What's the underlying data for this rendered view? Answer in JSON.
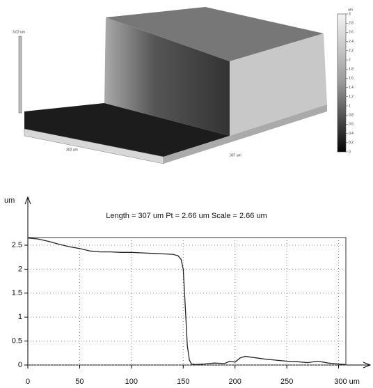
{
  "chart_data": [
    {
      "type": "surface",
      "axis_labels": [
        "3.02 um",
        "302 um",
        "307 um"
      ],
      "colorbar_label": "um",
      "colorbar_lim": [
        0,
        3
      ],
      "colorbar_ticks": [
        3,
        2.8,
        2.6,
        2.4,
        2.2,
        2,
        1.8,
        1.6,
        1.4,
        1.2,
        1,
        0.8,
        0.6,
        0.4,
        0.2,
        0
      ]
    },
    {
      "type": "line",
      "title": "Length = 307 um  Pt = 2.66 um  Scale = 2.66 um",
      "y_label": "um",
      "x": [
        0,
        10,
        20,
        30,
        40,
        50,
        60,
        70,
        80,
        90,
        100,
        110,
        120,
        130,
        140,
        145,
        148,
        150,
        152,
        154,
        156,
        158,
        162,
        170,
        180,
        190,
        195,
        200,
        205,
        210,
        220,
        230,
        240,
        250,
        260,
        270,
        280,
        290,
        300,
        307
      ],
      "values": [
        2.65,
        2.63,
        2.58,
        2.52,
        2.47,
        2.43,
        2.38,
        2.36,
        2.36,
        2.35,
        2.35,
        2.34,
        2.33,
        2.32,
        2.31,
        2.28,
        2.2,
        2.0,
        1.2,
        0.4,
        0.1,
        0.02,
        0.01,
        0.02,
        0.04,
        0.03,
        0.08,
        0.06,
        0.15,
        0.18,
        0.15,
        0.12,
        0.1,
        0.08,
        0.07,
        0.05,
        0.08,
        0.04,
        0.02,
        0.01
      ],
      "color": "#222222",
      "xlim": [
        0,
        307
      ],
      "ylim": [
        0,
        2.66
      ],
      "xticks": [
        0,
        50,
        100,
        150,
        200,
        250,
        {
          "value": 300,
          "label": "300 um"
        }
      ],
      "yticks": [
        0,
        0.5,
        1,
        1.5,
        2,
        2.5
      ],
      "grid": true
    }
  ]
}
